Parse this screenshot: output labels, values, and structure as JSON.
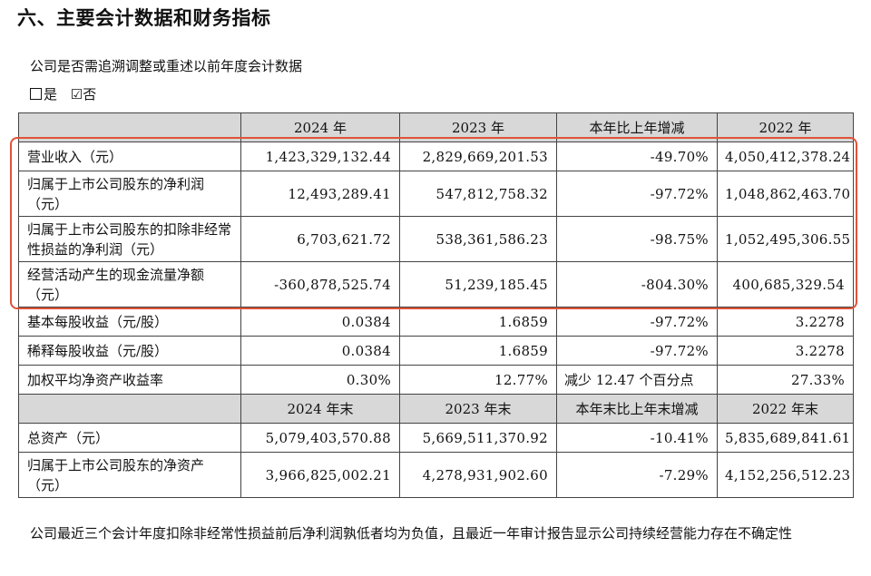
{
  "title": "六、主要会计数据和财务指标",
  "question": "公司是否需追溯调整或重述以前年度会计数据",
  "options": {
    "yes": "是",
    "no": "否",
    "no_mark": "☑"
  },
  "table": {
    "header1": [
      "",
      "2024 年",
      "2023 年",
      "本年比上年增减",
      "2022 年"
    ],
    "rows1": [
      {
        "label": "营业收入（元）",
        "v2024": "1,423,329,132.44",
        "v2023": "2,829,669,201.53",
        "change": "-49.70%",
        "v2022": "4,050,412,378.24"
      },
      {
        "label": "归属于上市公司股东的净利润（元）",
        "v2024": "12,493,289.41",
        "v2023": "547,812,758.32",
        "change": "-97.72%",
        "v2022": "1,048,862,463.70"
      },
      {
        "label": "归属于上市公司股东的扣除非经常性损益的净利润（元）",
        "v2024": "6,703,621.72",
        "v2023": "538,361,586.23",
        "change": "-98.75%",
        "v2022": "1,052,495,306.55"
      },
      {
        "label": "经营活动产生的现金流量净额（元）",
        "v2024": "-360,878,525.74",
        "v2023": "51,239,185.45",
        "change": "-804.30%",
        "v2022": "400,685,329.54"
      },
      {
        "label": "基本每股收益（元/股）",
        "v2024": "0.0384",
        "v2023": "1.6859",
        "change": "-97.72%",
        "v2022": "3.2278"
      },
      {
        "label": "稀释每股收益（元/股）",
        "v2024": "0.0384",
        "v2023": "1.6859",
        "change": "-97.72%",
        "v2022": "3.2278"
      },
      {
        "label": "加权平均净资产收益率",
        "v2024": "0.30%",
        "v2023": "12.77%",
        "change": "减少 12.47 个百分点",
        "v2022": "27.33%"
      }
    ],
    "header2": [
      "",
      "2024 年末",
      "2023 年末",
      "本年末比上年末增减",
      "2022 年末"
    ],
    "rows2": [
      {
        "label": "总资产（元）",
        "v2024": "5,079,403,570.88",
        "v2023": "5,669,511,370.92",
        "change": "-10.41%",
        "v2022": "5,835,689,841.61"
      },
      {
        "label": "归属于上市公司股东的净资产（元）",
        "v2024": "3,966,825,002.21",
        "v2023": "4,278,931,902.60",
        "change": "-7.29%",
        "v2022": "4,152,256,512.23"
      }
    ]
  },
  "footer": "公司最近三个会计年度扣除非经常性损益前后净利润孰低者均为负值，且最近一年审计报告显示公司持续经营能力存在不确定性",
  "colors": {
    "highlight": "#e0533a",
    "header_bg": "#d8d8d8"
  }
}
